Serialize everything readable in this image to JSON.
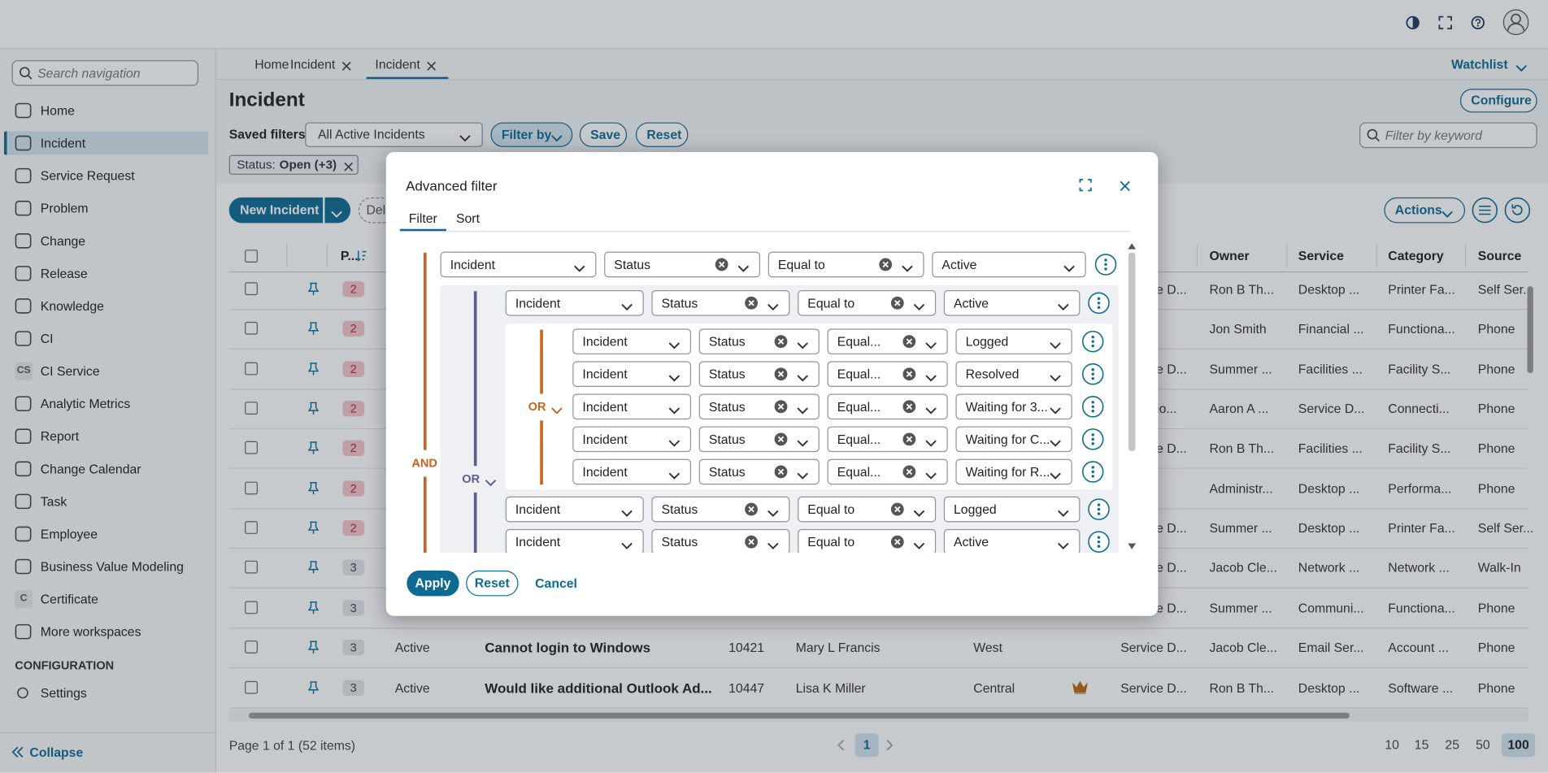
{
  "sidebar": {
    "search_placeholder": "Search navigation",
    "items": [
      {
        "label": "Home"
      },
      {
        "label": "Incident"
      },
      {
        "label": "Service Request"
      },
      {
        "label": "Problem"
      },
      {
        "label": "Change"
      },
      {
        "label": "Release"
      },
      {
        "label": "Knowledge"
      },
      {
        "label": "CI"
      },
      {
        "label": "CI Service",
        "icon": "CS"
      },
      {
        "label": "Analytic Metrics"
      },
      {
        "label": "Report"
      },
      {
        "label": "Change Calendar"
      },
      {
        "label": "Task"
      },
      {
        "label": "Employee"
      },
      {
        "label": "Business Value Modeling"
      },
      {
        "label": "Certificate",
        "icon": "C"
      },
      {
        "label": "More workspaces"
      }
    ],
    "section": "CONFIGURATION",
    "settings": "Settings",
    "collapse": "Collapse"
  },
  "tabs": [
    "Home",
    "Incident",
    "Incident"
  ],
  "watchlist": "Watchlist",
  "page": {
    "title": "Incident",
    "configure": "Configure",
    "saved_filters_label": "Saved filters",
    "saved_filter": "All Active Incidents",
    "filter_by": "Filter by",
    "save": "Save",
    "reset": "Reset",
    "keyword_placeholder": "Filter by keyword",
    "chip_label": "Status:",
    "chip_value": "Open (+3)",
    "new_incident": "New Incident",
    "delete": "Dele",
    "actions": "Actions"
  },
  "table": {
    "headers": {
      "priority": "P...",
      "owner": "Owner",
      "service": "Service",
      "category": "Category",
      "source": "Source"
    },
    "rows": [
      {
        "priority": 2,
        "team": "Service D...",
        "owner": "Ron B Th...",
        "service": "Desktop ...",
        "category": "Printer Fa...",
        "source": "Self Ser..."
      },
      {
        "priority": 2,
        "owner": "Jon Smith",
        "service": "Financial ...",
        "category": "Functiona...",
        "source": "Phone"
      },
      {
        "priority": 2,
        "team": "Service D...",
        "owner": "Summer ...",
        "service": "Facilities ...",
        "category": "Facility S...",
        "source": "Phone"
      },
      {
        "priority": 2,
        "team": "Provisio...",
        "owner": "Aaron A ...",
        "service": "Service D...",
        "category": "Connecti...",
        "source": "Phone"
      },
      {
        "priority": 2,
        "team": "Service D...",
        "owner": "Ron B Th...",
        "service": "Facilities ...",
        "category": "Facility S...",
        "source": "Phone"
      },
      {
        "priority": 2,
        "owner": "Administr...",
        "service": "Desktop ...",
        "category": "Performa...",
        "source": "Phone"
      },
      {
        "priority": 2,
        "team": "Service D...",
        "owner": "Summer ...",
        "service": "Desktop ...",
        "category": "Printer Fa...",
        "source": "Self Ser..."
      },
      {
        "priority": 3,
        "team": "Service D...",
        "owner": "Jacob Cle...",
        "service": "Network ...",
        "category": "Network ...",
        "source": "Walk-In"
      },
      {
        "priority": 3,
        "team": "Service D...",
        "owner": "Summer ...",
        "service": "Communi...",
        "category": "Functiona...",
        "source": "Phone"
      },
      {
        "priority": 3,
        "status": "Active",
        "subject": "Cannot login to Windows",
        "id": 10421,
        "requester": "Mary L Francis",
        "location": "West",
        "team": "Service D...",
        "owner": "Jacob Cle...",
        "service": "Email Ser...",
        "category": "Account ...",
        "source": "Phone"
      },
      {
        "priority": 3,
        "status": "Active",
        "subject": "Would like additional Outlook Ad...",
        "id": 10447,
        "requester": "Lisa K Miller",
        "location": "Central",
        "vip": true,
        "team": "Service D...",
        "owner": "Ron B Th...",
        "service": "Desktop ...",
        "category": "Software ...",
        "source": "Phone"
      }
    ]
  },
  "footer": {
    "summary": "Page 1 of 1 (52 items)",
    "current_page": "1",
    "page_sizes": [
      10,
      15,
      25,
      50,
      100
    ],
    "selected_page_size": 100
  },
  "advanced_filter": {
    "title": "Advanced filter",
    "tabs": [
      "Filter",
      "Sort"
    ],
    "root": {
      "operator": "AND",
      "conditions": [
        {
          "object": "Incident",
          "field": "Status",
          "operator": "Equal to",
          "value": "Active"
        },
        {
          "operator": "OR",
          "conditions": [
            {
              "object": "Incident",
              "field": "Status",
              "operator": "Equal to",
              "value": "Active"
            },
            {
              "operator": "OR",
              "conditions": [
                {
                  "object": "Incident",
                  "field": "Status",
                  "operator": "Equal...",
                  "value": "Logged"
                },
                {
                  "object": "Incident",
                  "field": "Status",
                  "operator": "Equal...",
                  "value": "Resolved"
                },
                {
                  "object": "Incident",
                  "field": "Status",
                  "operator": "Equal...",
                  "value": "Waiting for 3..."
                },
                {
                  "object": "Incident",
                  "field": "Status",
                  "operator": "Equal...",
                  "value": "Waiting for C..."
                },
                {
                  "object": "Incident",
                  "field": "Status",
                  "operator": "Equal...",
                  "value": "Waiting for R..."
                }
              ]
            },
            {
              "object": "Incident",
              "field": "Status",
              "operator": "Equal to",
              "value": "Logged"
            },
            {
              "object": "Incident",
              "field": "Status",
              "operator": "Equal to",
              "value": "Active"
            }
          ]
        }
      ]
    },
    "apply": "Apply",
    "reset": "Reset",
    "cancel": "Cancel"
  }
}
